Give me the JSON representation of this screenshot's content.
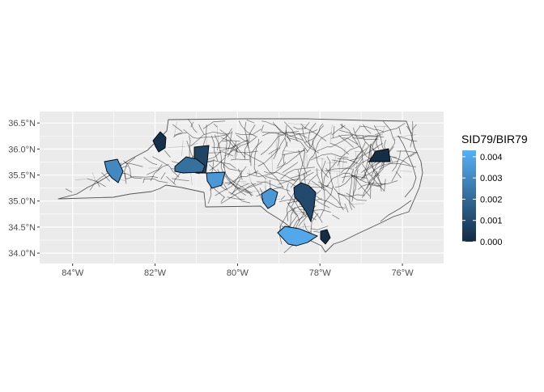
{
  "legend": {
    "title": "SID79/BIR79",
    "ticks": [
      "0.004",
      "0.003",
      "0.002",
      "0.001",
      "0.000"
    ],
    "gradient": {
      "low": "#132B43",
      "high": "#56B1F7"
    }
  },
  "axes": {
    "x_ticks": [
      "84°W",
      "82°W",
      "80°W",
      "78°W",
      "76°W"
    ],
    "y_ticks": [
      "36.5°N",
      "36.0°N",
      "35.5°N",
      "35.0°N",
      "34.5°N",
      "34.0°N"
    ]
  },
  "chart_data": {
    "type": "choropleth",
    "fill_variable": "SID79/BIR79",
    "x_range": [
      -84.8,
      -75.0
    ],
    "y_range": [
      33.8,
      36.72
    ],
    "grid": true,
    "legend_position": "right",
    "highlighted_counties": [
      {
        "lon": -81.9,
        "lat": 36.1,
        "value": 0.0002
      },
      {
        "lon": -81.0,
        "lat": 35.9,
        "value": 0.0008
      },
      {
        "lon": -81.2,
        "lat": 35.7,
        "value": 0.0022
      },
      {
        "lon": -80.7,
        "lat": 35.4,
        "value": 0.0035
      },
      {
        "lon": -82.9,
        "lat": 35.6,
        "value": 0.003
      },
      {
        "lon": -79.2,
        "lat": 35.0,
        "value": 0.0035
      },
      {
        "lon": -78.4,
        "lat": 35.0,
        "value": 0.001
      },
      {
        "lon": -78.6,
        "lat": 34.3,
        "value": 0.004
      },
      {
        "lon": -77.9,
        "lat": 34.2,
        "value": 0.0001
      },
      {
        "lon": -76.6,
        "lat": 35.8,
        "value": 0.0001
      }
    ]
  }
}
